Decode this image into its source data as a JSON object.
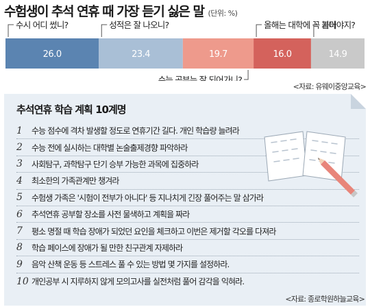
{
  "header": {
    "title": "수험생이 추석 연휴 때 가장 듣기 싫은 말",
    "unit": "(단위: %)"
  },
  "chart_data": {
    "type": "bar",
    "stacked": true,
    "orientation": "horizontal",
    "categories": [
      "수시 어디 썼니?",
      "성적은 잘 나오니?",
      "수능 공부는 잘 되어가니?",
      "올해는 대학에 꼭 붙어야지?",
      "기타"
    ],
    "values": [
      26.0,
      23.4,
      19.7,
      16.0,
      14.9
    ],
    "value_labels": [
      "26.0",
      "23.4",
      "19.7",
      "16.0",
      "14.9"
    ],
    "colors": [
      "#5b84b1",
      "#a9bfd6",
      "#ee9a8c",
      "#d4625c",
      "#c9c9c9"
    ],
    "xlim": [
      0,
      100
    ],
    "label_positions": [
      "top",
      "top",
      "bottom",
      "top",
      "top"
    ],
    "source": "<자료: 유웨이중앙교육>"
  },
  "plan": {
    "title": "추석연휴 학습 계획 10계명",
    "items": [
      {
        "num": "1",
        "text": "수능 점수에 격차 발생할 정도로 연휴기간 길다. 개인 학습량 늘려라"
      },
      {
        "num": "2",
        "text": "수능 전에 실시하는 대학별 논술출제경향 파악하라"
      },
      {
        "num": "3",
        "text": "사회탐구, 과학탐구 단기 승부 가능한 과목에 집중하라"
      },
      {
        "num": "4",
        "text": "최소한의 가족관계만 챙겨라"
      },
      {
        "num": "5",
        "text": "수험생 가족은 '시험이 전부가 아니다' 등 지나치게 긴장 풀어주는 말 삼가라"
      },
      {
        "num": "6",
        "text": "추석연휴 공부할 장소를 사전 물색하고 계획을 짜라"
      },
      {
        "num": "7",
        "text": "평소 명절 때 학습 장애가 되었던 요인을 체크하고 이번은 제거할 각오를 다져라"
      },
      {
        "num": "8",
        "text": "학습 페이스에 장애가 될 만한 친구관계 자제하라"
      },
      {
        "num": "9",
        "text": "음악 산책 운동 등 스트레스 풀 수 있는 방법 몇 가지를 설정하라."
      },
      {
        "num": "10",
        "text": "개인공부 시 지루하지 않게 모의고사를 실전처럼 풀어 감각을 익혀라."
      }
    ],
    "source": "<자료: 종로학원하늘교육>"
  }
}
